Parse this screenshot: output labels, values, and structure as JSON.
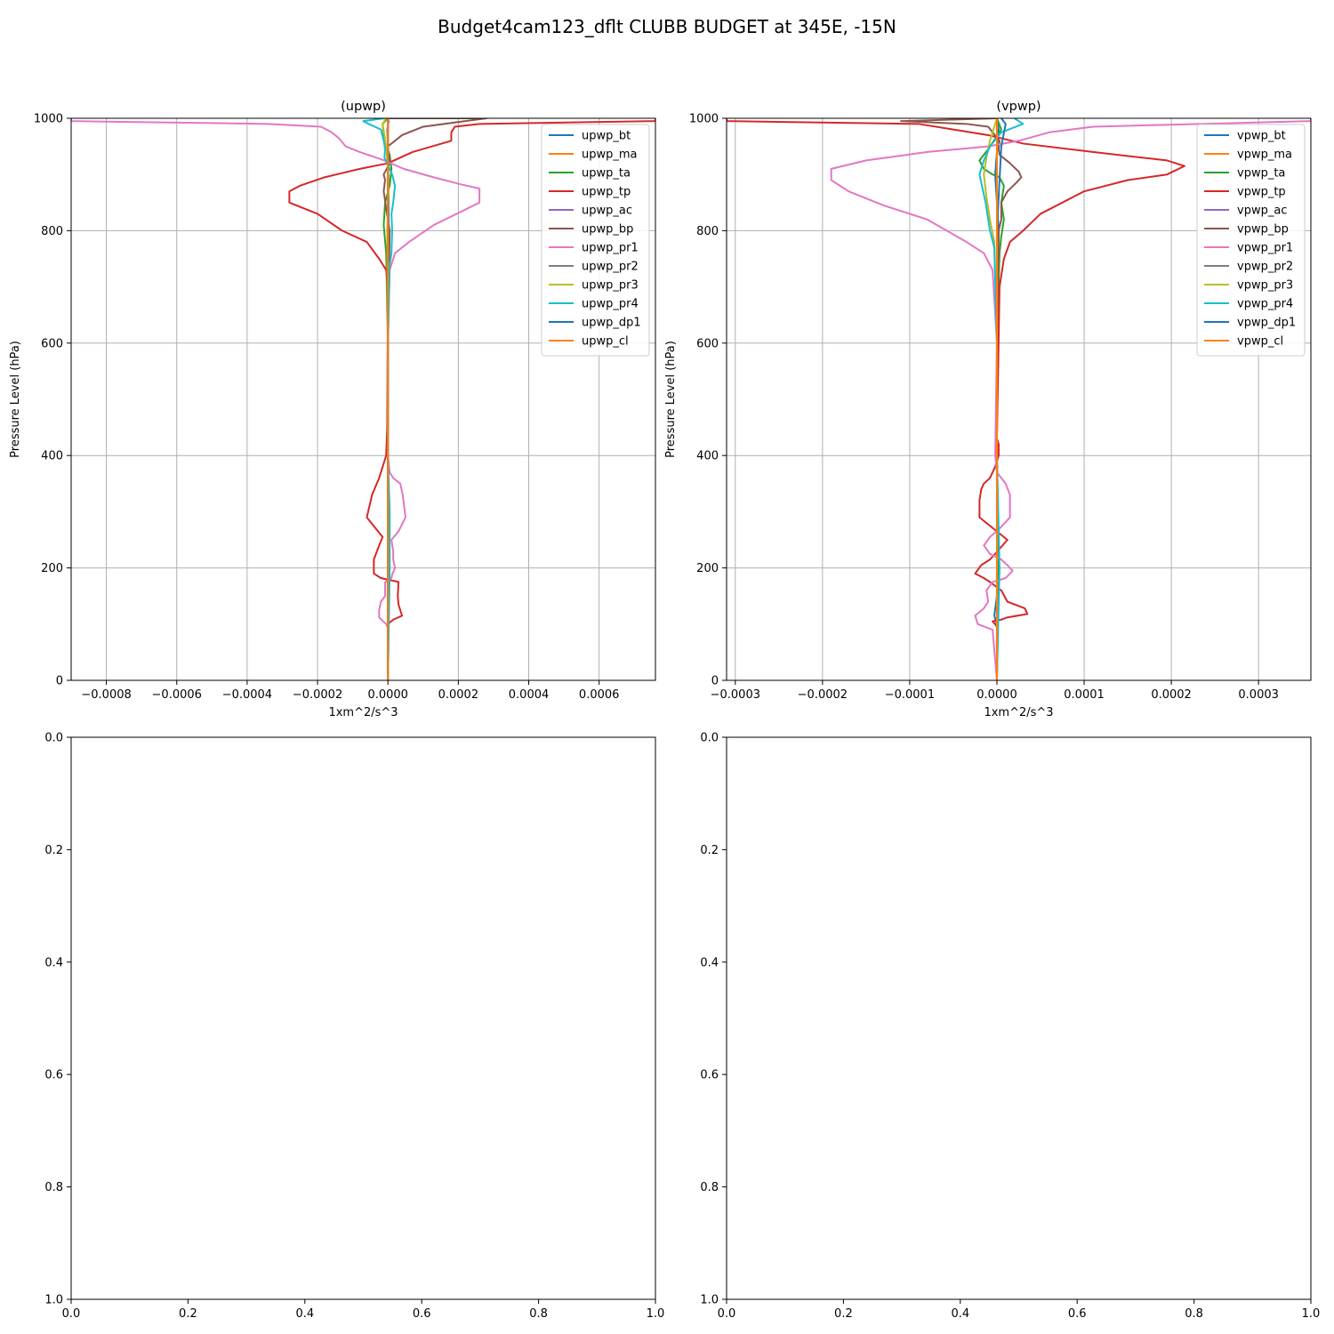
{
  "figure": {
    "title": "Budget4cam123_dflt CLUBB BUDGET at 345E, -15N"
  },
  "chart_data": [
    {
      "type": "line",
      "title": "(upwp)",
      "xlabel": "1xm^2/s^3",
      "ylabel": "Pressure Level (hPa)",
      "xlim": [
        -0.0009,
        0.00076
      ],
      "ylim": [
        1000,
        0
      ],
      "y_inverted": true,
      "grid": true,
      "legend_position": "top-right",
      "xticks": [
        -0.0008,
        -0.0006,
        -0.0004,
        -0.0002,
        0.0,
        0.0002,
        0.0004,
        0.0006
      ],
      "xtick_labels": [
        "−0.0008",
        "−0.0006",
        "−0.0004",
        "−0.0002",
        "0.0000",
        "0.0002",
        "0.0004",
        "0.0006"
      ],
      "yticks": [
        0,
        200,
        400,
        600,
        800,
        1000
      ],
      "ytick_labels": [
        "0",
        "200",
        "400",
        "600",
        "800",
        "1000"
      ],
      "series": [
        {
          "name": "upwp_bt",
          "color": "#1f77b4",
          "x": [
            0,
            0,
            0,
            0,
            2e-06,
            2e-06,
            0,
            0,
            -2e-06,
            2e-06,
            0
          ],
          "y": [
            0,
            200,
            400,
            600,
            800,
            880,
            920,
            950,
            980,
            995,
            1000
          ]
        },
        {
          "name": "upwp_ma",
          "color": "#ff7f0e",
          "x": [
            0,
            0,
            0,
            0,
            0,
            0,
            0,
            0,
            0
          ],
          "y": [
            0,
            200,
            400,
            600,
            800,
            900,
            950,
            990,
            1000
          ]
        },
        {
          "name": "upwp_ta",
          "color": "#2ca02c",
          "x": [
            0,
            2e-06,
            0,
            0,
            -5e-06,
            -1.2e-05,
            -8e-06,
            5e-06,
            1e-05,
            5e-06,
            -1e-05,
            -1.5e-05,
            0
          ],
          "y": [
            0,
            200,
            400,
            600,
            760,
            810,
            850,
            880,
            910,
            935,
            960,
            990,
            1000
          ]
        },
        {
          "name": "upwp_tp",
          "color": "#d62728",
          "x": [
            0,
            0,
            1.5e-05,
            4e-05,
            3.5e-05,
            3e-05,
            2.8e-05,
            3e-05,
            -2e-05,
            -4e-05,
            -4e-05,
            -2.5e-05,
            -1.5e-05,
            -6e-05,
            -4.5e-05,
            -2.5e-05,
            -1.5e-05,
            -5e-06,
            -2e-06,
            0,
            -5e-06,
            -2.5e-05,
            -6e-05,
            -0.00013,
            -0.0002,
            -0.00028,
            -0.00028,
            -0.00025,
            -0.00018,
            -8e-05,
            0.0,
            7e-05,
            0.00018,
            0.00018,
            0.00019,
            0.00026,
            0.00076,
            0.00076
          ],
          "y": [
            0,
            100,
            108,
            115,
            125,
            135,
            150,
            175,
            182,
            190,
            215,
            240,
            255,
            290,
            330,
            360,
            380,
            400,
            450,
            700,
            730,
            750,
            780,
            800,
            830,
            850,
            870,
            880,
            895,
            910,
            920,
            940,
            960,
            975,
            985,
            990,
            995,
            1000
          ]
        },
        {
          "name": "upwp_ac",
          "color": "#9467bd",
          "x": [
            0,
            0,
            0,
            0,
            0,
            0,
            0
          ],
          "y": [
            0,
            200,
            400,
            600,
            800,
            950,
            1000
          ]
        },
        {
          "name": "upwp_bp",
          "color": "#8c564b",
          "x": [
            0,
            0,
            0,
            0,
            5e-06,
            -5e-06,
            -1.2e-05,
            -8e-06,
            -1.2e-05,
            5e-06,
            0,
            4e-05,
            0.0001,
            0.00022,
            0.00028,
            0
          ],
          "y": [
            0,
            200,
            400,
            600,
            800,
            840,
            870,
            890,
            900,
            920,
            950,
            970,
            985,
            995,
            1000,
            1000
          ]
        },
        {
          "name": "upwp_pr1",
          "color": "#e377c2",
          "x": [
            0,
            2e-06,
            -5e-06,
            -2.5e-05,
            -2.5e-05,
            -2e-05,
            -8e-06,
            -8e-06,
            1e-05,
            1.2e-05,
            2e-05,
            1.5e-05,
            1.5e-05,
            1e-05,
            3e-05,
            5e-05,
            4.2e-05,
            3.5e-05,
            1.5e-05,
            5e-06,
            0,
            0,
            5e-06,
            2e-05,
            6e-05,
            0.00013,
            0.00026,
            0.00026,
            0.00021,
            0.00013,
            4.5e-05,
            -1e-05,
            -8e-05,
            -0.00012,
            -0.00014,
            -0.00016,
            -0.00019,
            -0.00034,
            -0.0009,
            -0.0009
          ],
          "y": [
            0,
            90,
            100,
            112,
            125,
            140,
            150,
            175,
            182,
            188,
            200,
            215,
            230,
            250,
            265,
            290,
            330,
            350,
            360,
            370,
            400,
            600,
            730,
            760,
            780,
            810,
            850,
            875,
            882,
            895,
            910,
            925,
            940,
            950,
            965,
            975,
            985,
            990,
            995,
            1000
          ]
        },
        {
          "name": "upwp_pr2",
          "color": "#7f7f7f",
          "x": [
            0,
            0,
            0,
            0,
            0,
            0,
            0,
            0
          ],
          "y": [
            0,
            200,
            400,
            600,
            800,
            950,
            995,
            1000
          ]
        },
        {
          "name": "upwp_pr3",
          "color": "#bcbd22",
          "x": [
            0,
            0,
            0,
            0,
            -2e-06,
            2e-06,
            0,
            -5e-06,
            -1.5e-05,
            -5e-06
          ],
          "y": [
            0,
            200,
            400,
            600,
            800,
            870,
            910,
            950,
            990,
            1000
          ]
        },
        {
          "name": "upwp_pr4",
          "color": "#17becf",
          "x": [
            0,
            5e-06,
            5e-06,
            0,
            0,
            5e-06,
            1e-05,
            1.2e-05,
            1e-05,
            1.5e-05,
            2e-05,
            1.2e-05,
            -1e-05,
            -8e-06,
            -1.2e-05,
            -2e-05,
            -5.5e-05,
            -7e-05,
            -1e-05
          ],
          "y": [
            0,
            200,
            300,
            400,
            600,
            740,
            760,
            800,
            830,
            850,
            880,
            900,
            930,
            945,
            960,
            980,
            990,
            995,
            1000
          ]
        },
        {
          "name": "upwp_dp1",
          "color": "#1f77b4",
          "x": [
            0,
            0,
            0,
            0,
            0,
            0,
            0
          ],
          "y": [
            0,
            200,
            400,
            600,
            800,
            950,
            1000
          ]
        },
        {
          "name": "upwp_cl",
          "color": "#ff7f0e",
          "x": [
            0,
            0,
            0,
            0,
            0,
            0,
            0
          ],
          "y": [
            0,
            200,
            400,
            600,
            800,
            950,
            1000
          ]
        }
      ]
    },
    {
      "type": "line",
      "title": "(vpwp)",
      "xlabel": "1xm^2/s^3",
      "ylabel": "Pressure Level (hPa)",
      "xlim": [
        -0.00031,
        0.00036
      ],
      "ylim": [
        1000,
        0
      ],
      "y_inverted": true,
      "grid": true,
      "legend_position": "top-right",
      "xticks": [
        -0.0003,
        -0.0002,
        -0.0001,
        0.0,
        0.0001,
        0.0002,
        0.0003
      ],
      "xtick_labels": [
        "−0.0003",
        "−0.0002",
        "−0.0001",
        "0.0000",
        "0.0001",
        "0.0002",
        "0.0003"
      ],
      "yticks": [
        0,
        200,
        400,
        600,
        800,
        1000
      ],
      "ytick_labels": [
        "0",
        "200",
        "400",
        "600",
        "800",
        "1000"
      ],
      "series": [
        {
          "name": "vpwp_bt",
          "color": "#1f77b4",
          "x": [
            0,
            0,
            -3e-06,
            0,
            2e-06,
            0,
            0,
            2e-06,
            -2e-06,
            2e-06,
            0
          ],
          "y": [
            0,
            100,
            115,
            150,
            200,
            400,
            600,
            800,
            900,
            980,
            1000
          ]
        },
        {
          "name": "vpwp_ma",
          "color": "#ff7f0e",
          "x": [
            0,
            0,
            0,
            0,
            0,
            0,
            0,
            0
          ],
          "y": [
            0,
            200,
            400,
            600,
            800,
            900,
            980,
            1000
          ]
        },
        {
          "name": "vpwp_ta",
          "color": "#2ca02c",
          "x": [
            0,
            2e-06,
            0,
            0,
            3e-06,
            5e-06,
            8e-06,
            5e-06,
            8e-06,
            3e-06,
            -5e-06,
            -1.5e-05,
            -2e-05,
            -1e-05,
            5e-06,
            0
          ],
          "y": [
            0,
            200,
            400,
            600,
            760,
            790,
            820,
            850,
            880,
            895,
            900,
            910,
            925,
            945,
            980,
            1000
          ]
        },
        {
          "name": "vpwp_tp",
          "color": "#d62728",
          "x": [
            0,
            0,
            -2e-06,
            -5e-06,
            5e-06,
            1.2e-05,
            3.5e-05,
            3.2e-05,
            1.2e-05,
            5e-06,
            -8e-06,
            -1.5e-05,
            -2.5e-05,
            -1.8e-05,
            -8e-06,
            -2e-06,
            1.2e-05,
            -2e-05,
            -2e-05,
            -1.8e-05,
            -1.5e-05,
            -8e-06,
            -2e-06,
            2e-06,
            2e-06,
            2e-06,
            0,
            3e-06,
            8e-06,
            1.5e-05,
            3e-05,
            5e-05,
            0.0001,
            0.00015,
            0.000195,
            0.000215,
            0.000195,
            0.00011,
            3e-05,
            -1e-05,
            -5e-05,
            -9e-05,
            -0.00031,
            -0.00031
          ],
          "y": [
            0,
            95,
            100,
            105,
            108,
            112,
            118,
            128,
            140,
            160,
            175,
            182,
            190,
            205,
            215,
            225,
            250,
            290,
            320,
            340,
            350,
            360,
            380,
            400,
            410,
            420,
            430,
            700,
            750,
            780,
            800,
            830,
            870,
            890,
            900,
            915,
            925,
            940,
            955,
            970,
            980,
            990,
            995,
            1000
          ]
        },
        {
          "name": "vpwp_ac",
          "color": "#9467bd",
          "x": [
            0,
            0,
            0,
            0,
            0,
            0,
            0
          ],
          "y": [
            0,
            200,
            400,
            600,
            800,
            950,
            1000
          ]
        },
        {
          "name": "vpwp_bp",
          "color": "#8c564b",
          "x": [
            0,
            0,
            0,
            0,
            2e-06,
            5e-06,
            5e-06,
            1.2e-05,
            2.2e-05,
            2.8e-05,
            2.5e-05,
            1.5e-05,
            3e-06,
            2e-06,
            3e-06,
            -5e-06,
            -1e-05,
            -3.5e-05,
            -0.00011,
            0
          ],
          "y": [
            0,
            200,
            400,
            600,
            800,
            820,
            850,
            870,
            885,
            895,
            905,
            920,
            935,
            945,
            960,
            975,
            985,
            990,
            995,
            1000
          ]
        },
        {
          "name": "vpwp_pr1",
          "color": "#e377c2",
          "x": [
            0,
            -5e-06,
            -2.2e-05,
            -2.5e-05,
            -1.5e-05,
            -1e-05,
            -1.2e-05,
            -5e-06,
            1e-05,
            1.8e-05,
            1.2e-05,
            5e-06,
            -8e-06,
            -1.5e-05,
            -8e-06,
            3e-06,
            1.5e-05,
            1.5e-05,
            1e-05,
            0,
            -2e-06,
            0,
            -5e-06,
            -1.5e-05,
            -3.5e-05,
            -8e-05,
            -0.00013,
            -0.00017,
            -0.00019,
            -0.00019,
            -0.00015,
            -8e-05,
            -1e-05,
            2.5e-05,
            6e-05,
            0.00011,
            0.00036,
            0.00036
          ],
          "y": [
            0,
            90,
            100,
            115,
            128,
            140,
            160,
            175,
            182,
            195,
            205,
            215,
            225,
            240,
            255,
            270,
            290,
            330,
            350,
            370,
            400,
            600,
            730,
            760,
            780,
            820,
            845,
            870,
            890,
            910,
            925,
            940,
            950,
            960,
            975,
            985,
            995,
            1000
          ]
        },
        {
          "name": "vpwp_pr2",
          "color": "#7f7f7f",
          "x": [
            0,
            0,
            0,
            0,
            0,
            0,
            0,
            0
          ],
          "y": [
            0,
            200,
            400,
            600,
            800,
            950,
            995,
            1000
          ]
        },
        {
          "name": "vpwp_pr3",
          "color": "#bcbd22",
          "x": [
            0,
            0,
            0,
            0,
            -3e-06,
            -8e-06,
            -1.2e-05,
            -1.5e-05,
            -1.2e-05,
            -8e-06,
            0
          ],
          "y": [
            0,
            200,
            400,
            600,
            780,
            820,
            860,
            900,
            930,
            960,
            1000
          ]
        },
        {
          "name": "vpwp_pr4",
          "color": "#17becf",
          "x": [
            0,
            3e-06,
            0,
            0,
            -3e-06,
            -8e-06,
            -1.3e-05,
            -2e-05,
            -1.5e-05,
            -8e-06,
            5e-06,
            3e-05,
            2e-05
          ],
          "y": [
            0,
            200,
            400,
            600,
            770,
            800,
            850,
            900,
            925,
            950,
            975,
            990,
            1000
          ]
        },
        {
          "name": "vpwp_dp1",
          "color": "#1f77b4",
          "x": [
            0,
            0,
            0,
            0,
            0,
            5e-06,
            1e-05,
            5e-06
          ],
          "y": [
            0,
            200,
            400,
            600,
            800,
            950,
            990,
            1000
          ]
        },
        {
          "name": "vpwp_cl",
          "color": "#ff7f0e",
          "x": [
            0,
            0,
            0,
            0,
            0,
            0,
            0
          ],
          "y": [
            0,
            200,
            400,
            600,
            800,
            950,
            1000
          ]
        }
      ]
    },
    {
      "type": "line",
      "title": "",
      "xlim": [
        0,
        1
      ],
      "ylim": [
        0,
        1
      ],
      "y_inverted": false,
      "grid": false,
      "xticks": [
        0.0,
        0.2,
        0.4,
        0.6,
        0.8,
        1.0
      ],
      "xtick_labels": [
        "0.0",
        "0.2",
        "0.4",
        "0.6",
        "0.8",
        "1.0"
      ],
      "yticks": [
        0.0,
        0.2,
        0.4,
        0.6,
        0.8,
        1.0
      ],
      "ytick_labels": [
        "0.0",
        "0.2",
        "0.4",
        "0.6",
        "0.8",
        "1.0"
      ],
      "series": []
    },
    {
      "type": "line",
      "title": "",
      "xlim": [
        0,
        1
      ],
      "ylim": [
        0,
        1
      ],
      "y_inverted": false,
      "grid": false,
      "xticks": [
        0.0,
        0.2,
        0.4,
        0.6,
        0.8,
        1.0
      ],
      "xtick_labels": [
        "0.0",
        "0.2",
        "0.4",
        "0.6",
        "0.8",
        "1.0"
      ],
      "yticks": [
        0.0,
        0.2,
        0.4,
        0.6,
        0.8,
        1.0
      ],
      "ytick_labels": [
        "0.0",
        "0.2",
        "0.4",
        "0.6",
        "0.8",
        "1.0"
      ],
      "series": []
    }
  ]
}
